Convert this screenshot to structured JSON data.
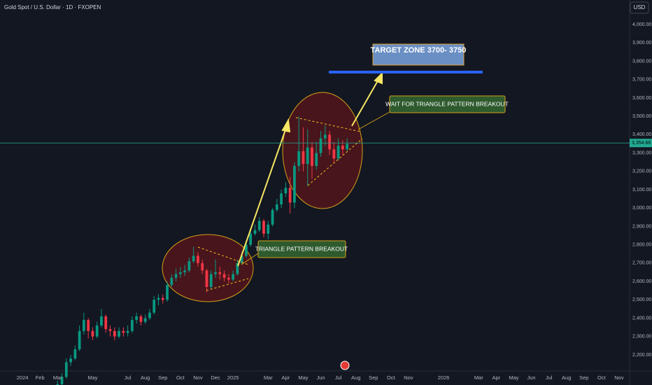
{
  "chart_data": {
    "type": "candlestick",
    "title": "Gold Spot / U.S. Dollar · 1D · FXOPEN",
    "currency": "USD",
    "up_color": "#089981",
    "down_color": "#f23645",
    "grid": false,
    "x": [
      2.0,
      2.25,
      2.5,
      2.75,
      3.0,
      3.25,
      3.5,
      3.75,
      4.0,
      4.25,
      4.5,
      4.75,
      5.0,
      5.25,
      5.5,
      5.75,
      6.0,
      6.25,
      6.5,
      6.75,
      7.0,
      7.25,
      7.5,
      7.75,
      8.0,
      8.25,
      8.5,
      8.75,
      9.0,
      9.25,
      9.5,
      9.75,
      10.0,
      10.25,
      10.5,
      10.75,
      11.0,
      11.25,
      11.5,
      11.75,
      12.0,
      12.25,
      12.5,
      12.75,
      13.0,
      13.25,
      13.5,
      13.75,
      14.0,
      14.25,
      14.5,
      14.75,
      15.0,
      15.25,
      15.5,
      15.75,
      16.0,
      16.25,
      16.5,
      16.75,
      17.0,
      17.25,
      17.5,
      17.75,
      18.0,
      18.25,
      18.5
    ],
    "open": [
      2030,
      2040,
      2080,
      2160,
      2180,
      2230,
      2330,
      2390,
      2330,
      2300,
      2360,
      2410,
      2340,
      2330,
      2300,
      2330,
      2320,
      2330,
      2390,
      2410,
      2380,
      2400,
      2430,
      2500,
      2510,
      2500,
      2580,
      2620,
      2640,
      2650,
      2660,
      2710,
      2740,
      2700,
      2660,
      2570,
      2640,
      2650,
      2640,
      2620,
      2610,
      2640,
      2700,
      2740,
      2800,
      2860,
      2880,
      2930,
      2860,
      2910,
      2990,
      3020,
      3080,
      3110,
      3030,
      3230,
      3310,
      3240,
      3330,
      3230,
      3300,
      3380,
      3400,
      3320,
      3270,
      3340,
      3320
    ],
    "high": [
      2060,
      2100,
      2180,
      2200,
      2250,
      2360,
      2430,
      2400,
      2350,
      2380,
      2450,
      2420,
      2360,
      2350,
      2350,
      2350,
      2360,
      2410,
      2430,
      2420,
      2420,
      2450,
      2520,
      2530,
      2530,
      2600,
      2640,
      2670,
      2680,
      2690,
      2730,
      2790,
      2760,
      2720,
      2670,
      2660,
      2720,
      2680,
      2660,
      2640,
      2660,
      2720,
      2760,
      2820,
      2880,
      2910,
      2950,
      2940,
      2930,
      3000,
      3050,
      3100,
      3140,
      3170,
      3250,
      3500,
      3440,
      3430,
      3360,
      3360,
      3420,
      3450,
      3420,
      3360,
      3380,
      3370,
      3380
    ],
    "low": [
      2015,
      2030,
      2070,
      2140,
      2170,
      2220,
      2310,
      2290,
      2280,
      2290,
      2350,
      2320,
      2300,
      2280,
      2290,
      2300,
      2300,
      2320,
      2370,
      2360,
      2370,
      2390,
      2420,
      2470,
      2480,
      2490,
      2570,
      2600,
      2620,
      2630,
      2650,
      2700,
      2680,
      2640,
      2540,
      2560,
      2620,
      2610,
      2600,
      2590,
      2600,
      2630,
      2690,
      2730,
      2790,
      2850,
      2870,
      2840,
      2830,
      2900,
      2980,
      3000,
      3060,
      2970,
      3000,
      3200,
      3200,
      3120,
      3160,
      3210,
      3280,
      3340,
      3290,
      3250,
      3260,
      3290,
      3310
    ],
    "close": [
      2040,
      2080,
      2160,
      2180,
      2230,
      2330,
      2390,
      2330,
      2300,
      2360,
      2410,
      2340,
      2330,
      2300,
      2330,
      2320,
      2330,
      2390,
      2410,
      2380,
      2400,
      2430,
      2500,
      2510,
      2500,
      2580,
      2620,
      2640,
      2650,
      2660,
      2710,
      2740,
      2700,
      2660,
      2570,
      2640,
      2650,
      2640,
      2620,
      2610,
      2640,
      2700,
      2740,
      2800,
      2860,
      2880,
      2930,
      2860,
      2910,
      2990,
      3020,
      3080,
      3110,
      3030,
      3230,
      3310,
      3240,
      3330,
      3230,
      3300,
      3380,
      3400,
      3320,
      3270,
      3340,
      3320,
      3350
    ],
    "xlim": [
      -1.28,
      34.6
    ],
    "xticks": [
      {
        "value": 0,
        "label": "2024"
      },
      {
        "value": 1,
        "label": "Feb"
      },
      {
        "value": 2,
        "label": "Mar"
      },
      {
        "value": 4,
        "label": "May"
      },
      {
        "value": 6,
        "label": "Jul"
      },
      {
        "value": 7,
        "label": "Aug"
      },
      {
        "value": 8,
        "label": "Sep"
      },
      {
        "value": 9,
        "label": "Oct"
      },
      {
        "value": 10,
        "label": "Nov"
      },
      {
        "value": 11,
        "label": "Dec"
      },
      {
        "value": 12,
        "label": "2025"
      },
      {
        "value": 14,
        "label": "Mar"
      },
      {
        "value": 15,
        "label": "Apr"
      },
      {
        "value": 16,
        "label": "May"
      },
      {
        "value": 17,
        "label": "Jun"
      },
      {
        "value": 18,
        "label": "Jul"
      },
      {
        "value": 19,
        "label": "Aug"
      },
      {
        "value": 20,
        "label": "Sep"
      },
      {
        "value": 21,
        "label": "Oct"
      },
      {
        "value": 22,
        "label": "Nov"
      },
      {
        "value": 24,
        "label": "2026"
      },
      {
        "value": 26,
        "label": "Mar"
      },
      {
        "value": 27,
        "label": "Apr"
      },
      {
        "value": 28,
        "label": "May"
      },
      {
        "value": 29,
        "label": "Jun"
      },
      {
        "value": 30,
        "label": "Jul"
      },
      {
        "value": 31,
        "label": "Aug"
      },
      {
        "value": 32,
        "label": "Sep"
      },
      {
        "value": 33,
        "label": "Oct"
      },
      {
        "value": 34,
        "label": "Nov"
      }
    ],
    "ylim": [
      2112,
      4134
    ],
    "yticks": [
      {
        "value": 2200,
        "label": "2,200.00"
      },
      {
        "value": 2300,
        "label": "2,300.00"
      },
      {
        "value": 2400,
        "label": "2,400.00"
      },
      {
        "value": 2500,
        "label": "2,500.00"
      },
      {
        "value": 2600,
        "label": "2,600.00"
      },
      {
        "value": 2700,
        "label": "2,700.00"
      },
      {
        "value": 2800,
        "label": "2,800.00"
      },
      {
        "value": 2900,
        "label": "2,900.00"
      },
      {
        "value": 3000,
        "label": "3,000.00"
      },
      {
        "value": 3100,
        "label": "3,100.00"
      },
      {
        "value": 3200,
        "label": "3,200.00"
      },
      {
        "value": 3300,
        "label": "3,300.00"
      },
      {
        "value": 3400,
        "label": "3,400.00"
      },
      {
        "value": 3500,
        "label": "3,500.00"
      },
      {
        "value": 3600,
        "label": "3,600.00"
      },
      {
        "value": 3700,
        "label": "3,700.00"
      },
      {
        "value": 3800,
        "label": "3,800.00"
      },
      {
        "value": 3900,
        "label": "3,900.00"
      },
      {
        "value": 4000,
        "label": "4,000.00"
      }
    ],
    "last_price": {
      "value": 3354.66,
      "label": "3,354.66"
    },
    "annotations": {
      "target": "TARGET ZONE 3700- 3750",
      "wait": "WAIT FOR TRIANGLE PATTERN BREAKOUT",
      "breakout": "TRIANGLE PATTERN BREAKOUT"
    }
  }
}
